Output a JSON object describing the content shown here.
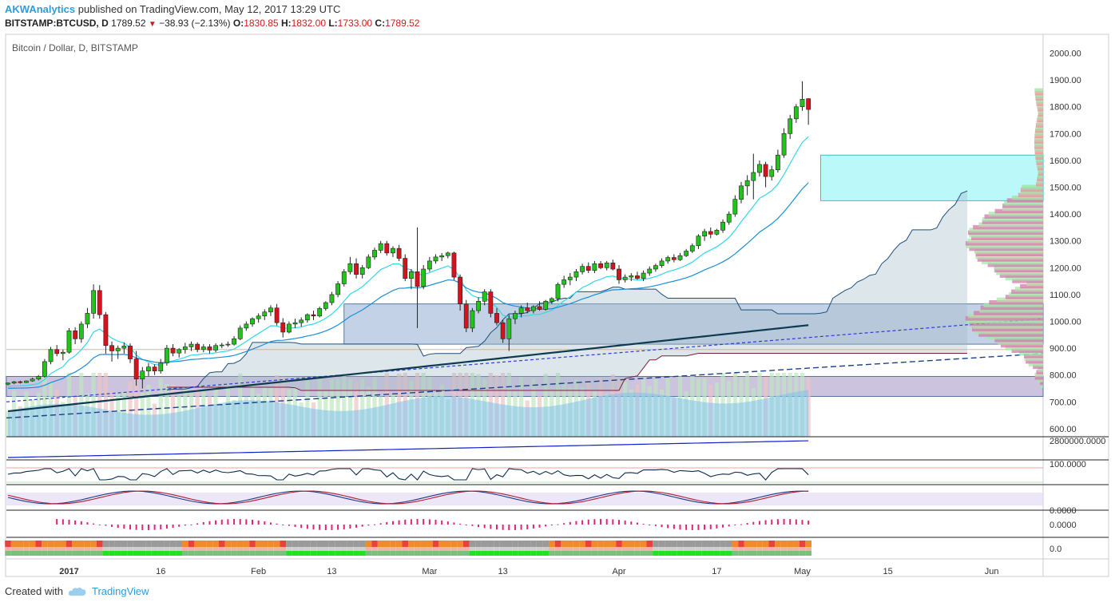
{
  "header": {
    "user": "AKWAnalytics",
    "published": "published on TradingView.com, May 12, 2017 13:29 UTC",
    "symbol": "BITSTAMP:BTCUSD, D",
    "price": "1789.52",
    "change": "−38.93 (−2.13%)",
    "o_label": "O:",
    "o_value": "1830.85",
    "h_label": "H:",
    "h_value": "1832.00",
    "l_label": "L:",
    "l_value": "1733.00",
    "c_label": "C:",
    "c_value": "1789.52"
  },
  "chart_title": "Bitcoin / Dollar, D, BITSTAMP",
  "footer": {
    "created_with": "Created with",
    "brand": "TradingView"
  },
  "colors": {
    "up": "#22c41c",
    "down": "#d4141c",
    "ema_fast": "#34d7e8",
    "ema_slow": "#1a8fd6",
    "ichimoku": "#1d4f7c",
    "accent": "#2e9cdb"
  },
  "chart_data": {
    "type": "candlestick",
    "title": "Bitcoin / Dollar, D, BITSTAMP",
    "date_ticks": [
      {
        "label": "2017",
        "index": 10
      },
      {
        "label": "16",
        "index": 25
      },
      {
        "label": "Feb",
        "index": 41
      },
      {
        "label": "13",
        "index": 53
      },
      {
        "label": "Mar",
        "index": 69
      },
      {
        "label": "13",
        "index": 81
      },
      {
        "label": "Apr",
        "index": 100
      },
      {
        "label": "17",
        "index": 116
      },
      {
        "label": "May",
        "index": 130
      },
      {
        "label": "15",
        "index": 144
      },
      {
        "label": "Jun",
        "index": 161
      }
    ],
    "price_ticks": [
      600,
      700,
      800,
      900,
      1000,
      1100,
      1200,
      1300,
      1400,
      1500,
      1600,
      1700,
      1800,
      1900,
      2000
    ],
    "ylim": [
      570,
      2070
    ],
    "volume_axis_label": "2800000.0000",
    "osc_axis_label": "100.0000",
    "stoch_axis_label": "0.0000",
    "macd_axis_label": "0.0000",
    "bottom_axis_label": "0.0",
    "zones": [
      {
        "from": 1450,
        "to": 1620,
        "color": "#66f0f2"
      },
      {
        "from": 915,
        "to": 1065,
        "color": "#7a9cc7"
      },
      {
        "from": 720,
        "to": 795,
        "color": "#8d7bb8"
      }
    ],
    "horizontal_line": 895,
    "candles": [
      [
        766,
        772,
        762,
        770
      ],
      [
        770,
        778,
        766,
        775
      ],
      [
        775,
        779,
        768,
        772
      ],
      [
        772,
        780,
        770,
        778
      ],
      [
        778,
        790,
        775,
        785
      ],
      [
        785,
        800,
        780,
        795
      ],
      [
        795,
        860,
        790,
        850
      ],
      [
        850,
        905,
        840,
        895
      ],
      [
        895,
        912,
        870,
        880
      ],
      [
        880,
        895,
        855,
        885
      ],
      [
        885,
        975,
        880,
        965
      ],
      [
        965,
        978,
        915,
        935
      ],
      [
        935,
        1000,
        920,
        990
      ],
      [
        990,
        1050,
        975,
        1030
      ],
      [
        1030,
        1138,
        1010,
        1115
      ],
      [
        1115,
        1135,
        1010,
        1025
      ],
      [
        1025,
        1035,
        880,
        910
      ],
      [
        910,
        925,
        850,
        890
      ],
      [
        890,
        910,
        860,
        900
      ],
      [
        900,
        922,
        880,
        908
      ],
      [
        908,
        918,
        845,
        860
      ],
      [
        860,
        890,
        760,
        785
      ],
      [
        785,
        830,
        750,
        815
      ],
      [
        815,
        845,
        795,
        830
      ],
      [
        830,
        840,
        800,
        815
      ],
      [
        815,
        860,
        805,
        845
      ],
      [
        845,
        912,
        835,
        900
      ],
      [
        900,
        915,
        870,
        882
      ],
      [
        882,
        900,
        865,
        895
      ],
      [
        895,
        920,
        880,
        905
      ],
      [
        905,
        925,
        890,
        915
      ],
      [
        915,
        922,
        885,
        895
      ],
      [
        895,
        915,
        885,
        905
      ],
      [
        905,
        915,
        880,
        893
      ],
      [
        893,
        918,
        885,
        910
      ],
      [
        910,
        920,
        900,
        912
      ],
      [
        912,
        925,
        905,
        915
      ],
      [
        915,
        945,
        910,
        935
      ],
      [
        935,
        985,
        930,
        975
      ],
      [
        975,
        1000,
        965,
        990
      ],
      [
        990,
        1015,
        980,
        1010
      ],
      [
        1010,
        1030,
        995,
        1020
      ],
      [
        1020,
        1045,
        1005,
        1035
      ],
      [
        1035,
        1060,
        1020,
        1050
      ],
      [
        1050,
        1065,
        985,
        995
      ],
      [
        995,
        1012,
        940,
        960
      ],
      [
        960,
        1000,
        955,
        990
      ],
      [
        990,
        1010,
        975,
        995
      ],
      [
        995,
        1015,
        980,
        1005
      ],
      [
        1005,
        1030,
        995,
        1025
      ],
      [
        1025,
        1040,
        1005,
        1020
      ],
      [
        1020,
        1055,
        1015,
        1048
      ],
      [
        1048,
        1075,
        1040,
        1070
      ],
      [
        1070,
        1110,
        1060,
        1100
      ],
      [
        1100,
        1150,
        1090,
        1140
      ],
      [
        1140,
        1195,
        1130,
        1185
      ],
      [
        1185,
        1240,
        1175,
        1215
      ],
      [
        1215,
        1235,
        1160,
        1175
      ],
      [
        1175,
        1210,
        1160,
        1200
      ],
      [
        1200,
        1250,
        1195,
        1240
      ],
      [
        1240,
        1275,
        1230,
        1265
      ],
      [
        1265,
        1300,
        1255,
        1290
      ],
      [
        1290,
        1300,
        1245,
        1255
      ],
      [
        1255,
        1280,
        1240,
        1272
      ],
      [
        1272,
        1285,
        1225,
        1235
      ],
      [
        1235,
        1250,
        1150,
        1160
      ],
      [
        1160,
        1195,
        1120,
        1185
      ],
      [
        1185,
        1350,
        975,
        1130
      ],
      [
        1130,
        1210,
        1120,
        1195
      ],
      [
        1195,
        1240,
        1185,
        1225
      ],
      [
        1225,
        1250,
        1215,
        1240
      ],
      [
        1240,
        1255,
        1225,
        1245
      ],
      [
        1245,
        1260,
        1235,
        1255
      ],
      [
        1255,
        1260,
        1155,
        1165
      ],
      [
        1165,
        1175,
        1040,
        1065
      ],
      [
        1065,
        1080,
        960,
        975
      ],
      [
        975,
        1050,
        960,
        1040
      ],
      [
        1040,
        1090,
        1030,
        1075
      ],
      [
        1075,
        1120,
        1060,
        1110
      ],
      [
        1110,
        1120,
        1015,
        1030
      ],
      [
        1030,
        1050,
        985,
        995
      ],
      [
        995,
        1005,
        920,
        935
      ],
      [
        935,
        1025,
        890,
        1010
      ],
      [
        1010,
        1040,
        990,
        1030
      ],
      [
        1030,
        1060,
        1015,
        1050
      ],
      [
        1050,
        1070,
        1030,
        1040
      ],
      [
        1040,
        1060,
        1030,
        1055
      ],
      [
        1055,
        1075,
        1040,
        1045
      ],
      [
        1045,
        1080,
        1040,
        1075
      ],
      [
        1075,
        1090,
        1065,
        1085
      ],
      [
        1085,
        1145,
        1075,
        1138
      ],
      [
        1138,
        1170,
        1125,
        1155
      ],
      [
        1155,
        1180,
        1135,
        1165
      ],
      [
        1165,
        1195,
        1150,
        1185
      ],
      [
        1185,
        1215,
        1175,
        1205
      ],
      [
        1205,
        1220,
        1180,
        1190
      ],
      [
        1190,
        1225,
        1180,
        1215
      ],
      [
        1215,
        1225,
        1195,
        1200
      ],
      [
        1200,
        1225,
        1190,
        1218
      ],
      [
        1218,
        1230,
        1190,
        1195
      ],
      [
        1195,
        1210,
        1140,
        1155
      ],
      [
        1155,
        1175,
        1145,
        1165
      ],
      [
        1165,
        1180,
        1150,
        1170
      ],
      [
        1170,
        1185,
        1155,
        1160
      ],
      [
        1160,
        1190,
        1150,
        1180
      ],
      [
        1180,
        1205,
        1170,
        1195
      ],
      [
        1195,
        1215,
        1185,
        1208
      ],
      [
        1208,
        1235,
        1200,
        1225
      ],
      [
        1225,
        1245,
        1215,
        1238
      ],
      [
        1238,
        1250,
        1220,
        1230
      ],
      [
        1230,
        1255,
        1225,
        1245
      ],
      [
        1245,
        1270,
        1240,
        1262
      ],
      [
        1262,
        1290,
        1255,
        1282
      ],
      [
        1282,
        1325,
        1270,
        1318
      ],
      [
        1318,
        1345,
        1300,
        1335
      ],
      [
        1335,
        1350,
        1310,
        1325
      ],
      [
        1325,
        1345,
        1320,
        1340
      ],
      [
        1340,
        1380,
        1330,
        1370
      ],
      [
        1370,
        1410,
        1360,
        1400
      ],
      [
        1400,
        1470,
        1390,
        1455
      ],
      [
        1455,
        1520,
        1440,
        1505
      ],
      [
        1505,
        1545,
        1470,
        1525
      ],
      [
        1525,
        1625,
        1455,
        1555
      ],
      [
        1555,
        1600,
        1540,
        1585
      ],
      [
        1585,
        1595,
        1500,
        1540
      ],
      [
        1540,
        1580,
        1525,
        1565
      ],
      [
        1565,
        1640,
        1555,
        1620
      ],
      [
        1620,
        1720,
        1610,
        1700
      ],
      [
        1700,
        1770,
        1680,
        1755
      ],
      [
        1755,
        1810,
        1740,
        1800
      ],
      [
        1800,
        1895,
        1785,
        1828
      ],
      [
        1830,
        1832,
        1733,
        1790
      ]
    ]
  }
}
